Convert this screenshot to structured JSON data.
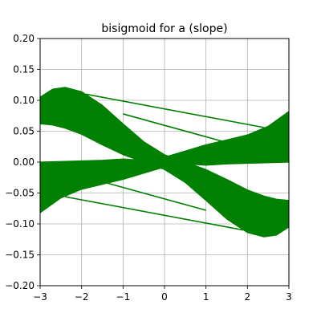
{
  "chart_data": {
    "type": "line",
    "title": "bisigmoid for a (slope)",
    "xlabel": "",
    "ylabel": "",
    "xlim": [
      -3,
      3
    ],
    "ylim": [
      -0.2,
      0.2
    ],
    "grid": true,
    "x_ticks": [
      -3,
      -2,
      -1,
      0,
      1,
      2,
      3
    ],
    "x_tick_labels": [
      "−3",
      "−2",
      "−1",
      "0",
      "1",
      "2",
      "3"
    ],
    "y_ticks": [
      -0.2,
      -0.15,
      -0.1,
      -0.05,
      0.0,
      0.05,
      0.1,
      0.15,
      0.2
    ],
    "y_tick_labels": [
      "−0.20",
      "−0.15",
      "−0.10",
      "−0.05",
      "0.00",
      "0.05",
      "0.10",
      "0.15",
      "0.20"
    ],
    "line_color": "#008000",
    "bands": [
      {
        "name": "",
        "x": [
          -3,
          -2.7,
          -2.4,
          -2.0,
          -1.5,
          -1.0,
          -0.5,
          0.0,
          0.5,
          1.0,
          1.5,
          2.0,
          2.4,
          2.7,
          3.0
        ],
        "upper": [
          0.105,
          0.118,
          0.121,
          0.114,
          0.092,
          0.062,
          0.033,
          0.012,
          0.0,
          -0.012,
          -0.028,
          -0.045,
          -0.055,
          -0.06,
          -0.062
        ],
        "lower": [
          0.062,
          0.06,
          0.055,
          0.045,
          0.028,
          0.012,
          0.0,
          -0.012,
          -0.033,
          -0.062,
          -0.092,
          -0.114,
          -0.121,
          -0.118,
          -0.105
        ]
      },
      {
        "name": "",
        "x": [
          -3,
          -2.5,
          -2.0,
          -1.5,
          -1.0,
          -0.5,
          0.0,
          0.5,
          1.0,
          1.5,
          2.0,
          2.5,
          3.0
        ],
        "upper": [
          0.0,
          0.001,
          0.002,
          0.003,
          0.005,
          0.003,
          0.008,
          0.018,
          0.028,
          0.036,
          0.044,
          0.058,
          0.082
        ],
        "lower": [
          -0.082,
          -0.058,
          -0.044,
          -0.036,
          -0.028,
          -0.018,
          -0.008,
          -0.003,
          -0.005,
          -0.003,
          -0.002,
          -0.001,
          0.0
        ]
      }
    ],
    "lines": [
      {
        "name": "",
        "x": [
          -1.0,
          1.7
        ],
        "y": [
          0.078,
          0.028
        ]
      },
      {
        "name": "",
        "x": [
          -1.7,
          1.0
        ],
        "y": [
          -0.028,
          -0.078
        ]
      },
      {
        "name": "",
        "x": [
          -2.4,
          1.9
        ],
        "y": [
          -0.056,
          -0.11
        ]
      },
      {
        "name": "",
        "x": [
          -1.9,
          2.4
        ],
        "y": [
          0.11,
          0.056
        ]
      }
    ]
  }
}
